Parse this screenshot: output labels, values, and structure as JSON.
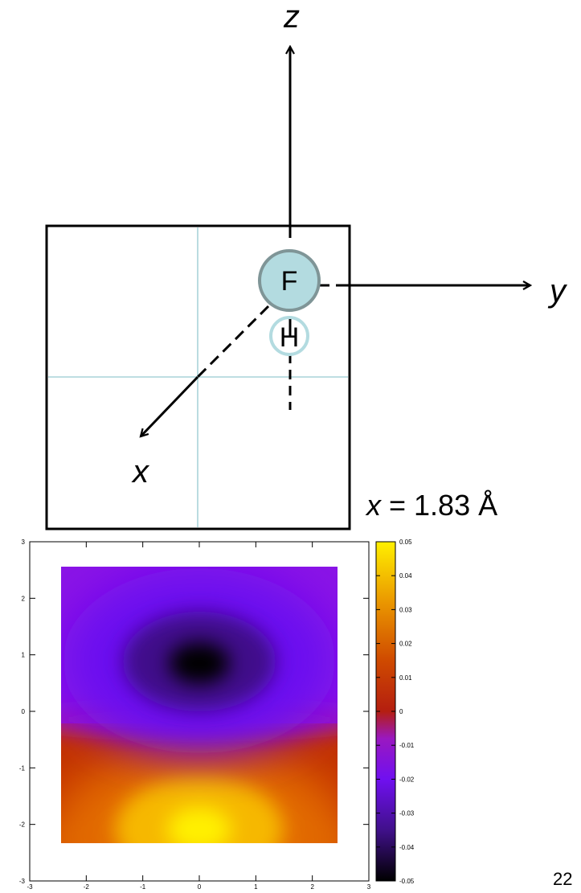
{
  "diagram": {
    "axes": {
      "z": "z",
      "y": "y",
      "x": "x"
    },
    "atoms": {
      "fluorine": "F",
      "hydrogen": "H"
    },
    "caption": {
      "variable": "x",
      "equals": " = 1.83 Å"
    },
    "page_number": "22",
    "colors": {
      "fluorine_fill": "#b3dbe0",
      "fluorine_stroke": "#7f9597",
      "hydrogen_stroke": "#b3dbe0",
      "guide_lines": "#a8d4d8"
    }
  },
  "chart_data": {
    "type": "heatmap",
    "title": "",
    "xlabel": "",
    "ylabel": "",
    "xlim": [
      -3,
      3
    ],
    "ylim": [
      -3,
      3
    ],
    "x_ticks": [
      "-3",
      "-2",
      "-1",
      "0",
      "1",
      "2",
      "3"
    ],
    "y_ticks": [
      "-3",
      "-2",
      "-1",
      "0",
      "1",
      "2",
      "3"
    ],
    "data_extent": {
      "x": [
        -2.45,
        2.45
      ],
      "y": [
        -2.4,
        2.55
      ]
    },
    "colorbar": {
      "range": [
        -0.05,
        0.05
      ],
      "ticks": [
        "0.05",
        "0.04",
        "0.03",
        "0.02",
        "0.01",
        "0",
        "-0.01",
        "-0.02",
        "-0.03",
        "-0.04",
        "-0.05"
      ]
    },
    "features": [
      {
        "kind": "minimum",
        "x": 0.0,
        "y": 0.8,
        "value": -0.05
      },
      {
        "kind": "maximum",
        "x": 0.0,
        "y": -1.8,
        "value": 0.05
      }
    ]
  }
}
